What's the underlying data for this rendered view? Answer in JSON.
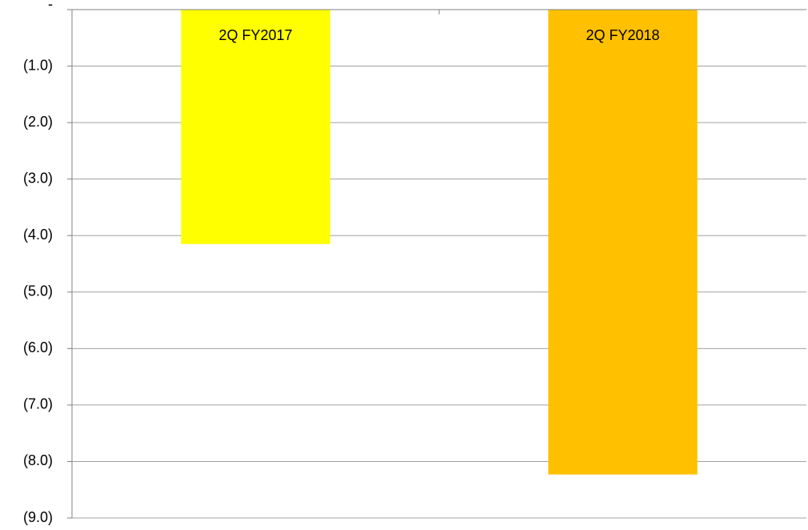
{
  "chart_data": {
    "type": "bar",
    "categories": [
      "2Q FY2017",
      "2Q FY2018"
    ],
    "values": [
      -4.15,
      -8.23
    ],
    "colors": [
      "#ffff00",
      "#ffc000"
    ],
    "ylim": [
      -9,
      0
    ],
    "yticks": [
      {
        "value": 0,
        "label": "-"
      },
      {
        "value": -1,
        "label": "(1.0)"
      },
      {
        "value": -2,
        "label": "(2.0)"
      },
      {
        "value": -3,
        "label": "(3.0)"
      },
      {
        "value": -4,
        "label": "(4.0)"
      },
      {
        "value": -5,
        "label": "(5.0)"
      },
      {
        "value": -6,
        "label": "(6.0)"
      },
      {
        "value": -7,
        "label": "(7.0)"
      },
      {
        "value": -8,
        "label": "(8.0)"
      },
      {
        "value": -9,
        "label": "(9.0)"
      }
    ],
    "grid": true
  }
}
